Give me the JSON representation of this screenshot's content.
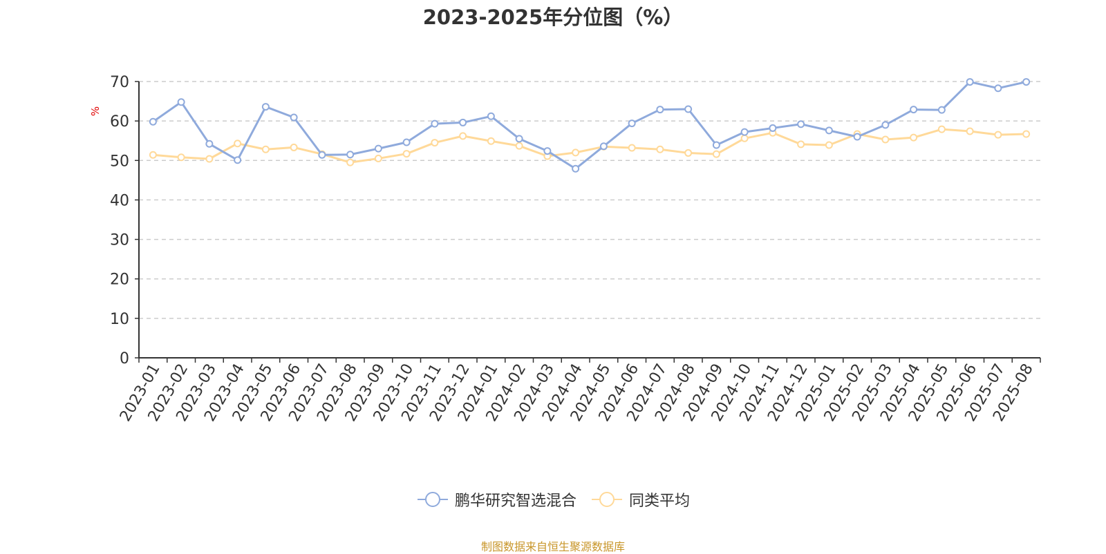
{
  "title": "2023-2025年分位图（%）",
  "unit_label": "%",
  "source": "制图数据来自恒生聚源数据库",
  "colors": {
    "series1": "#8faadc",
    "series2": "#ffd999",
    "axis": "#333333",
    "grid": "#cccccc"
  },
  "chart_data": {
    "type": "line",
    "ylim": [
      0,
      70
    ],
    "yticks": [
      0,
      10,
      20,
      30,
      40,
      50,
      60,
      70
    ],
    "grid": true,
    "legend_position": "bottom",
    "categories": [
      "2023-01",
      "2023-02",
      "2023-03",
      "2023-04",
      "2023-05",
      "2023-06",
      "2023-07",
      "2023-08",
      "2023-09",
      "2023-10",
      "2023-11",
      "2023-12",
      "2024-01",
      "2024-02",
      "2024-03",
      "2024-04",
      "2024-05",
      "2024-06",
      "2024-07",
      "2024-08",
      "2024-09",
      "2024-10",
      "2024-11",
      "2024-12",
      "2025-01",
      "2025-02",
      "2025-03",
      "2025-04",
      "2025-05",
      "2025-06",
      "2025-07",
      "2025-08"
    ],
    "series": [
      {
        "name": "鹏华研究智选混合",
        "values": [
          59.8,
          64.8,
          54.2,
          50.1,
          63.6,
          60.9,
          51.4,
          51.5,
          53.0,
          54.6,
          59.3,
          59.6,
          61.2,
          55.5,
          52.4,
          47.9,
          53.6,
          59.4,
          62.9,
          63.0,
          53.9,
          57.2,
          58.2,
          59.2,
          57.6,
          56.0,
          59.0,
          62.9,
          62.8,
          69.9,
          68.3,
          69.9
        ]
      },
      {
        "name": "同类平均",
        "values": [
          51.4,
          50.8,
          50.4,
          54.3,
          52.8,
          53.3,
          51.6,
          49.5,
          50.5,
          51.7,
          54.5,
          56.2,
          54.9,
          53.7,
          51.1,
          52.0,
          53.5,
          53.2,
          52.8,
          51.9,
          51.6,
          55.6,
          57.0,
          54.1,
          53.9,
          56.7,
          55.3,
          55.8,
          57.9,
          57.4,
          56.5,
          56.7
        ]
      }
    ]
  }
}
